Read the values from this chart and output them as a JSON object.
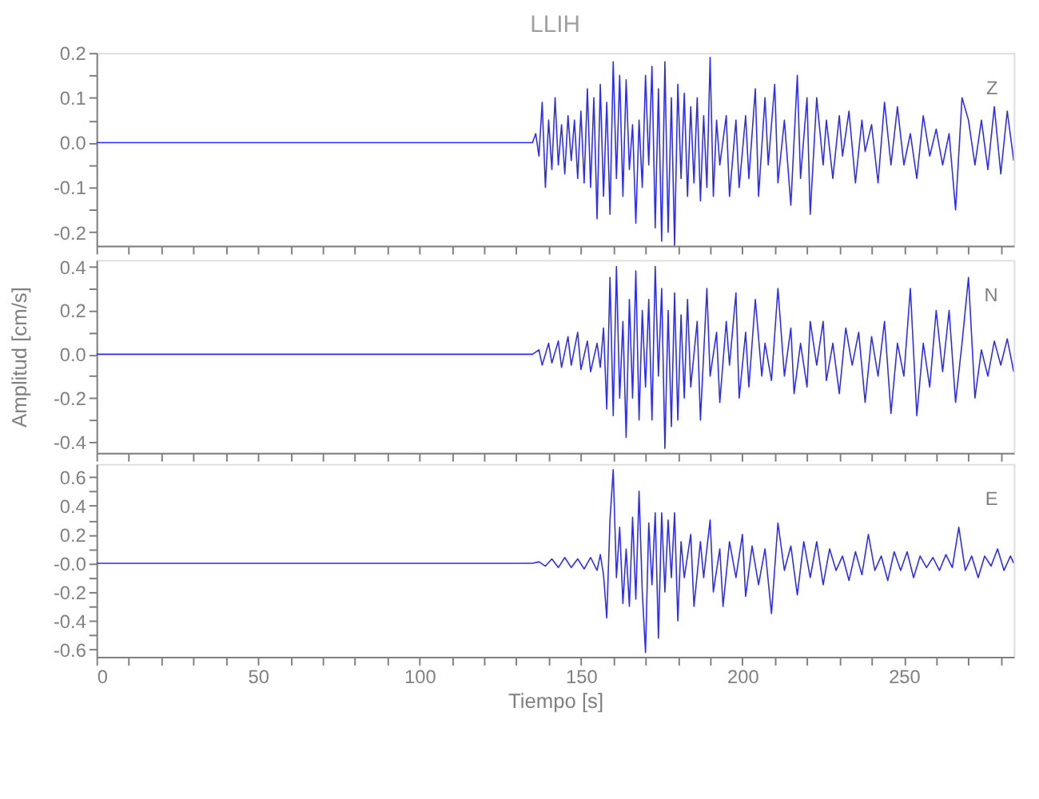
{
  "chart_data": [
    {
      "type": "line",
      "title": "LLIH",
      "annotations": [
        "Z"
      ],
      "grid": false,
      "tick_labels": "y",
      "xlim": [
        0,
        284
      ],
      "ylim": [
        -0.23,
        0.2
      ],
      "xticks": [
        0,
        {
          "value": 10,
          "label": null
        },
        {
          "value": 20,
          "label": null
        },
        {
          "value": 30,
          "label": null
        },
        {
          "value": 40,
          "label": null
        },
        50,
        {
          "value": 60,
          "label": null
        },
        {
          "value": 70,
          "label": null
        },
        {
          "value": 80,
          "label": null
        },
        {
          "value": 90,
          "label": null
        },
        100,
        {
          "value": 110,
          "label": null
        },
        {
          "value": 120,
          "label": null
        },
        {
          "value": 130,
          "label": null
        },
        {
          "value": 140,
          "label": null
        },
        150,
        {
          "value": 160,
          "label": null
        },
        {
          "value": 170,
          "label": null
        },
        {
          "value": 180,
          "label": null
        },
        {
          "value": 190,
          "label": null
        },
        200,
        {
          "value": 210,
          "label": null
        },
        {
          "value": 220,
          "label": null
        },
        {
          "value": 230,
          "label": null
        },
        {
          "value": 240,
          "label": null
        },
        250,
        {
          "value": 260,
          "label": null
        },
        {
          "value": 270,
          "label": null
        },
        {
          "value": 280,
          "label": null
        }
      ],
      "yticks": [
        -0.2,
        {
          "value": -0.15,
          "label": null
        },
        -0.1,
        {
          "value": -0.05,
          "label": null
        },
        {
          "value": 0,
          "label": "0.0"
        },
        {
          "value": 0.05,
          "label": null
        },
        0.1,
        {
          "value": 0.15,
          "label": null
        },
        0.2
      ],
      "series": [
        {
          "color": "#2b2bff",
          "x": [
            0,
            20,
            40,
            60,
            80,
            100,
            120,
            135,
            136,
            137,
            138,
            139,
            140,
            141,
            142,
            143,
            144,
            145,
            146,
            147,
            148,
            149,
            150,
            151,
            152,
            153,
            154,
            155,
            156,
            157,
            158,
            159,
            160,
            161,
            162,
            163,
            164,
            165,
            166,
            167,
            168,
            169,
            170,
            171,
            172,
            173,
            174,
            175,
            176,
            177,
            178,
            179,
            180,
            181,
            182,
            183,
            184,
            185,
            186,
            187,
            188,
            189,
            190,
            191,
            192,
            193,
            195,
            196,
            198,
            199,
            201,
            202,
            204,
            205,
            207,
            208,
            210,
            211,
            213,
            215,
            217,
            218,
            220,
            221,
            223,
            225,
            226,
            228,
            230,
            231,
            233,
            235,
            237,
            238,
            240,
            242,
            244,
            246,
            248,
            250,
            252,
            254,
            256,
            258,
            260,
            262,
            264,
            266,
            268,
            270,
            272,
            274,
            276,
            278,
            280,
            282,
            284
          ],
          "values": [
            0,
            0,
            0,
            0,
            0,
            0,
            0,
            0,
            0.02,
            -0.03,
            0.09,
            -0.1,
            0.05,
            -0.06,
            0.1,
            -0.05,
            0.04,
            -0.07,
            0.06,
            -0.04,
            0.05,
            -0.08,
            0.07,
            -0.09,
            0.12,
            -0.1,
            0.1,
            -0.17,
            0.13,
            -0.12,
            0.09,
            -0.16,
            0.18,
            -0.08,
            0.15,
            -0.12,
            0.14,
            -0.06,
            0.04,
            -0.18,
            0.05,
            -0.1,
            0.15,
            -0.05,
            0.17,
            -0.19,
            0.12,
            -0.22,
            0.18,
            -0.2,
            0.1,
            -0.23,
            0.13,
            -0.08,
            0.11,
            -0.12,
            0.08,
            -0.09,
            0.1,
            -0.13,
            0.06,
            -0.1,
            0.19,
            -0.12,
            0.05,
            -0.05,
            0.06,
            -0.12,
            0.05,
            -0.1,
            0.06,
            -0.08,
            0.12,
            -0.12,
            0.1,
            -0.05,
            0.13,
            -0.09,
            0.05,
            -0.14,
            0.15,
            -0.08,
            0.1,
            -0.16,
            0.1,
            -0.05,
            0.05,
            -0.08,
            0.06,
            -0.03,
            0.07,
            -0.09,
            0.05,
            -0.02,
            0.04,
            -0.09,
            0.09,
            -0.05,
            0.08,
            -0.05,
            0.02,
            -0.08,
            0.06,
            -0.03,
            0.03,
            -0.05,
            0.02,
            -0.15,
            0.1,
            0.05,
            -0.05,
            0.05,
            -0.06,
            0.08,
            -0.07,
            0.07,
            -0.04
          ]
        }
      ]
    },
    {
      "type": "line",
      "ylabel": "Amplitud [cm/s]",
      "annotations": [
        "N"
      ],
      "grid": false,
      "tick_labels": "y",
      "xlim": [
        0,
        284
      ],
      "ylim": [
        -0.45,
        0.43
      ],
      "xticks": [
        0,
        {
          "value": 10,
          "label": null
        },
        {
          "value": 20,
          "label": null
        },
        {
          "value": 30,
          "label": null
        },
        {
          "value": 40,
          "label": null
        },
        50,
        {
          "value": 60,
          "label": null
        },
        {
          "value": 70,
          "label": null
        },
        {
          "value": 80,
          "label": null
        },
        {
          "value": 90,
          "label": null
        },
        100,
        {
          "value": 110,
          "label": null
        },
        {
          "value": 120,
          "label": null
        },
        {
          "value": 130,
          "label": null
        },
        {
          "value": 140,
          "label": null
        },
        150,
        {
          "value": 160,
          "label": null
        },
        {
          "value": 170,
          "label": null
        },
        {
          "value": 180,
          "label": null
        },
        {
          "value": 190,
          "label": null
        },
        200,
        {
          "value": 210,
          "label": null
        },
        {
          "value": 220,
          "label": null
        },
        {
          "value": 230,
          "label": null
        },
        {
          "value": 240,
          "label": null
        },
        250,
        {
          "value": 260,
          "label": null
        },
        {
          "value": 270,
          "label": null
        },
        {
          "value": 280,
          "label": null
        }
      ],
      "yticks": [
        -0.4,
        {
          "value": -0.3,
          "label": null
        },
        -0.2,
        {
          "value": -0.1,
          "label": null
        },
        {
          "value": 0,
          "label": "0.0"
        },
        {
          "value": 0.1,
          "label": null
        },
        0.2,
        {
          "value": 0.3,
          "label": null
        },
        0.4
      ],
      "series": [
        {
          "color": "#2b2bff",
          "x": [
            0,
            20,
            40,
            60,
            80,
            100,
            120,
            135,
            137,
            138,
            140,
            141,
            143,
            144,
            146,
            147,
            149,
            150,
            152,
            153,
            155,
            156,
            157,
            158,
            159,
            160,
            161,
            162,
            163,
            164,
            165,
            166,
            167,
            168,
            169,
            170,
            171,
            172,
            173,
            174,
            175,
            176,
            177,
            178,
            179,
            180,
            181,
            182,
            183,
            184,
            186,
            187,
            189,
            190,
            192,
            193,
            195,
            196,
            198,
            199,
            201,
            202,
            204,
            206,
            207,
            209,
            211,
            213,
            215,
            216,
            218,
            220,
            221,
            223,
            225,
            226,
            228,
            230,
            232,
            234,
            236,
            238,
            240,
            242,
            244,
            246,
            248,
            250,
            252,
            254,
            256,
            258,
            260,
            262,
            264,
            266,
            268,
            270,
            272,
            274,
            276,
            278,
            280,
            282,
            284
          ],
          "values": [
            0,
            0,
            0,
            0,
            0,
            0,
            0,
            0,
            0.02,
            -0.05,
            0.05,
            -0.04,
            0.06,
            -0.06,
            0.08,
            -0.05,
            0.1,
            -0.07,
            0.06,
            -0.08,
            0.05,
            -0.06,
            0.12,
            -0.25,
            0.35,
            -0.28,
            0.4,
            -0.2,
            0.15,
            -0.38,
            0.25,
            -0.2,
            0.38,
            -0.3,
            0.2,
            -0.15,
            0.25,
            -0.3,
            0.4,
            -0.1,
            0.3,
            -0.43,
            0.2,
            -0.33,
            0.28,
            -0.3,
            0.18,
            -0.2,
            0.25,
            -0.15,
            0.15,
            -0.3,
            0.3,
            -0.1,
            0.1,
            -0.22,
            0.15,
            -0.05,
            0.28,
            -0.2,
            0.1,
            -0.15,
            0.25,
            -0.1,
            0.05,
            -0.12,
            0.3,
            -0.1,
            0.12,
            -0.18,
            0.05,
            -0.15,
            0.15,
            -0.05,
            0.15,
            -0.12,
            0.05,
            -0.18,
            0.12,
            -0.05,
            0.1,
            -0.22,
            0.08,
            -0.1,
            0.15,
            -0.27,
            0.05,
            -0.1,
            0.3,
            -0.28,
            0.05,
            -0.15,
            0.2,
            -0.08,
            0.2,
            -0.22,
            0.05,
            0.35,
            -0.2,
            0.02,
            -0.1,
            0.06,
            -0.05,
            0.07,
            -0.08
          ]
        }
      ]
    },
    {
      "type": "line",
      "xlabel": "Tiempo [s]",
      "annotations": [
        "E"
      ],
      "grid": false,
      "xlim": [
        0,
        284
      ],
      "ylim": [
        -0.65,
        0.69
      ],
      "xticks": [
        0,
        {
          "value": 10,
          "label": null
        },
        {
          "value": 20,
          "label": null
        },
        {
          "value": 30,
          "label": null
        },
        {
          "value": 40,
          "label": null
        },
        50,
        {
          "value": 60,
          "label": null
        },
        {
          "value": 70,
          "label": null
        },
        {
          "value": 80,
          "label": null
        },
        {
          "value": 90,
          "label": null
        },
        100,
        {
          "value": 110,
          "label": null
        },
        {
          "value": 120,
          "label": null
        },
        {
          "value": 130,
          "label": null
        },
        {
          "value": 140,
          "label": null
        },
        150,
        {
          "value": 160,
          "label": null
        },
        {
          "value": 170,
          "label": null
        },
        {
          "value": 180,
          "label": null
        },
        {
          "value": 190,
          "label": null
        },
        200,
        {
          "value": 210,
          "label": null
        },
        {
          "value": 220,
          "label": null
        },
        {
          "value": 230,
          "label": null
        },
        {
          "value": 240,
          "label": null
        },
        250,
        {
          "value": 260,
          "label": null
        },
        {
          "value": 270,
          "label": null
        },
        {
          "value": 280,
          "label": null
        }
      ],
      "yticks": [
        -0.6,
        {
          "value": -0.5,
          "label": null
        },
        -0.4,
        {
          "value": -0.3,
          "label": null
        },
        -0.2,
        {
          "value": -0.1,
          "label": null
        },
        {
          "value": 0,
          "label": "-0.0"
        },
        {
          "value": 0.1,
          "label": null
        },
        0.2,
        {
          "value": 0.3,
          "label": null
        },
        0.4,
        {
          "value": 0.5,
          "label": null
        },
        0.6
      ],
      "series": [
        {
          "color": "#2b2bff",
          "x": [
            0,
            20,
            40,
            60,
            80,
            100,
            120,
            135,
            137,
            139,
            141,
            143,
            145,
            147,
            149,
            151,
            153,
            155,
            156,
            157,
            158,
            159,
            160,
            161,
            162,
            163,
            164,
            165,
            166,
            167,
            168,
            169,
            170,
            171,
            172,
            173,
            174,
            175,
            176,
            177,
            178,
            179,
            180,
            181,
            182,
            184,
            185,
            187,
            188,
            190,
            191,
            193,
            194,
            196,
            198,
            200,
            201,
            203,
            205,
            207,
            209,
            211,
            213,
            215,
            217,
            219,
            221,
            223,
            225,
            227,
            229,
            231,
            233,
            235,
            237,
            239,
            241,
            243,
            245,
            247,
            249,
            251,
            253,
            255,
            257,
            259,
            261,
            263,
            265,
            267,
            269,
            271,
            273,
            275,
            277,
            279,
            281,
            283,
            284
          ],
          "values": [
            0,
            0,
            0,
            0,
            0,
            0,
            0,
            0,
            0.01,
            -0.02,
            0.03,
            -0.03,
            0.04,
            -0.03,
            0.03,
            -0.04,
            0.04,
            -0.05,
            0.06,
            -0.08,
            -0.38,
            0.3,
            0.65,
            -0.1,
            0.25,
            -0.28,
            0.1,
            -0.3,
            0.32,
            -0.25,
            0.5,
            -0.2,
            -0.62,
            0.28,
            -0.15,
            0.35,
            -0.52,
            0.35,
            -0.2,
            0.3,
            -0.1,
            0.35,
            -0.4,
            0.15,
            -0.1,
            0.2,
            -0.3,
            0.15,
            -0.1,
            0.3,
            -0.2,
            0.1,
            -0.3,
            0.15,
            -0.1,
            0.2,
            -0.23,
            0.12,
            -0.15,
            0.1,
            -0.35,
            0.28,
            -0.05,
            0.12,
            -0.22,
            0.15,
            -0.1,
            0.15,
            -0.15,
            0.1,
            -0.05,
            0.05,
            -0.12,
            0.08,
            -0.08,
            0.2,
            -0.05,
            0.05,
            -0.12,
            0.08,
            -0.05,
            0.08,
            -0.1,
            0.05,
            -0.03,
            0.04,
            -0.05,
            0.06,
            -0.03,
            0.25,
            -0.05,
            0.05,
            -0.1,
            0.05,
            -0.02,
            0.1,
            -0.05,
            0.05,
            0
          ]
        }
      ]
    }
  ]
}
